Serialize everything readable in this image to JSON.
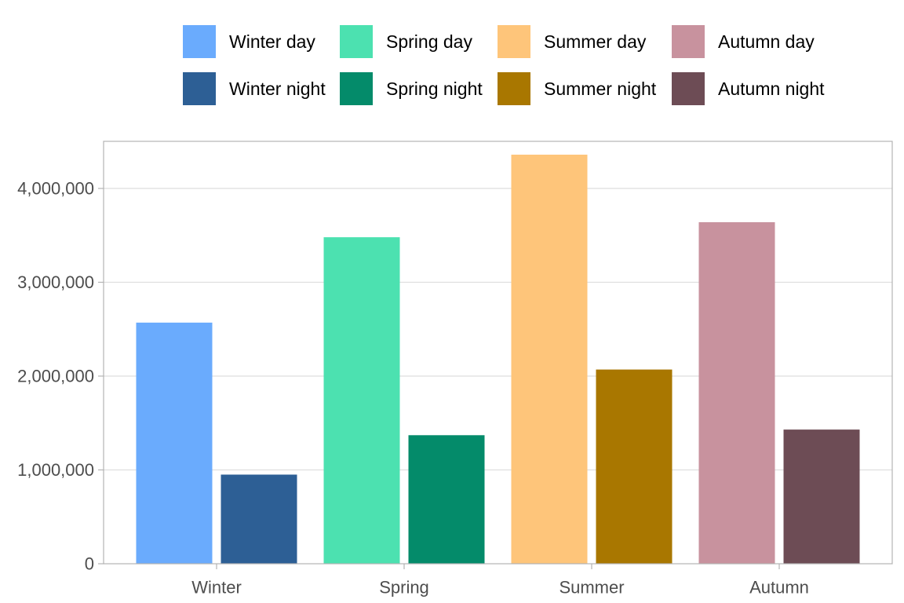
{
  "chart_data": {
    "type": "bar",
    "title": "",
    "xlabel": "",
    "ylabel": "",
    "categories": [
      "Winter",
      "Spring",
      "Summer",
      "Autumn"
    ],
    "ylim": [
      0,
      4500000
    ],
    "yticks": [
      0,
      1000000,
      2000000,
      3000000,
      4000000
    ],
    "ytick_labels": [
      "0",
      "1,000,000",
      "2,000,000",
      "3,000,000",
      "4,000,000"
    ],
    "grid": true,
    "legend_position": "top",
    "series": [
      {
        "group": "day",
        "values": [
          2570000,
          3480000,
          4360000,
          3640000
        ],
        "names": [
          "Winter day",
          "Spring day",
          "Summer day",
          "Autumn day"
        ],
        "colors": [
          "#6aabfd",
          "#4ce1b0",
          "#fec57a",
          "#c8929e"
        ]
      },
      {
        "group": "night",
        "values": [
          950000,
          1370000,
          2070000,
          1430000
        ],
        "names": [
          "Winter night",
          "Spring night",
          "Summer night",
          "Autumn night"
        ],
        "colors": [
          "#2d5f95",
          "#048b6a",
          "#a97700",
          "#6d4c55"
        ]
      }
    ],
    "legend": [
      {
        "label": "Winter day",
        "color": "#6aabfd"
      },
      {
        "label": "Winter night",
        "color": "#2d5f95"
      },
      {
        "label": "Spring day",
        "color": "#4ce1b0"
      },
      {
        "label": "Spring night",
        "color": "#048b6a"
      },
      {
        "label": "Summer day",
        "color": "#fec57a"
      },
      {
        "label": "Summer night",
        "color": "#a97700"
      },
      {
        "label": "Autumn day",
        "color": "#c8929e"
      },
      {
        "label": "Autumn night",
        "color": "#6d4c55"
      }
    ]
  }
}
